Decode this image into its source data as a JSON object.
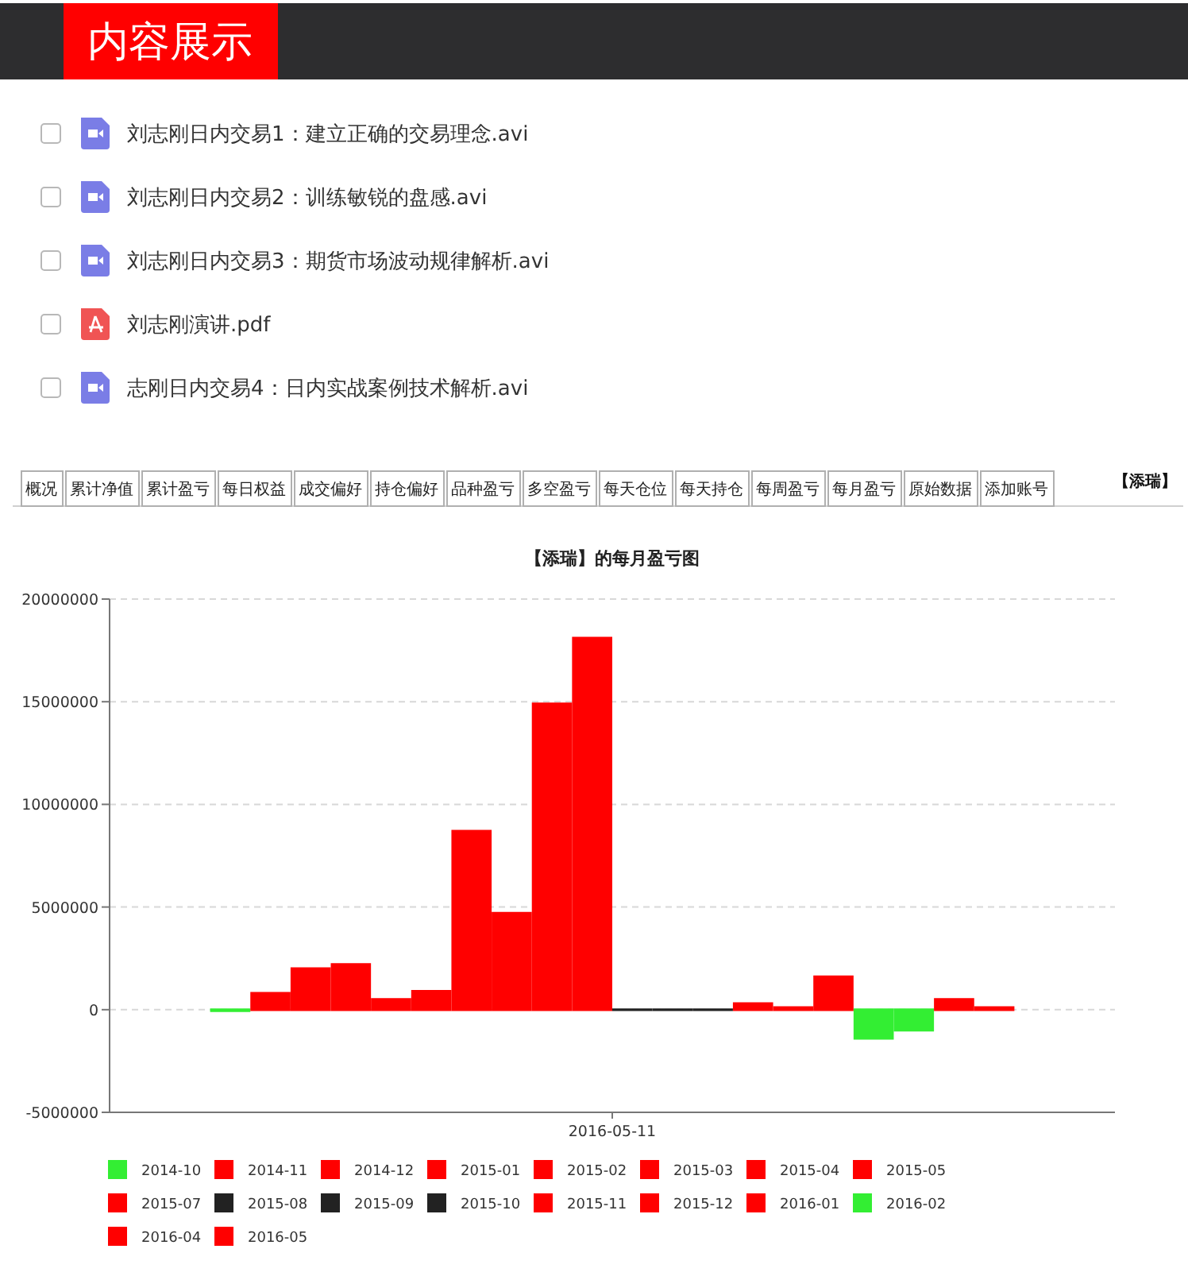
{
  "chart_data": [
    {
      "type": "other",
      "title": "内容展示",
      "annotations": [
        "刘志刚日内交易1：建立正确的交易理念.avi",
        "刘志刚日内交易2：训练敏锐的盘感.avi",
        "刘志刚日内交易3：期货市场波动规律解析.avi",
        "刘志刚演讲.pdf",
        "志刚日内交易4：日内实战案例技术解析.avi"
      ]
    },
    {
      "type": "other",
      "title": "【添瑞】",
      "annotations": [
        "概况",
        "累计净值",
        "累计盈亏",
        "每日权益",
        "成交偏好",
        "持仓偏好",
        "品种盈亏",
        "多空盈亏",
        "每天仓位",
        "每天持仓",
        "每周盈亏",
        "每月盈亏",
        "原始数据",
        "添加账号"
      ]
    },
    {
      "type": "bar",
      "title": "【添瑞】的每月盈亏图",
      "categories": [
        "2016-05-11"
      ],
      "series": [
        {
          "name": "2014-10",
          "color": "#33ee33",
          "values": [
            -50000
          ]
        },
        {
          "name": "2014-11",
          "color": "#ff0000",
          "values": [
            800000
          ]
        },
        {
          "name": "2014-12",
          "color": "#ff0000",
          "values": [
            2000000
          ]
        },
        {
          "name": "2015-01",
          "color": "#ff0000",
          "values": [
            2200000
          ]
        },
        {
          "name": "2015-02",
          "color": "#ff0000",
          "values": [
            500000
          ]
        },
        {
          "name": "2015-03",
          "color": "#ff0000",
          "values": [
            900000
          ]
        },
        {
          "name": "2015-04",
          "color": "#ff0000",
          "values": [
            8700000
          ]
        },
        {
          "name": "2015-05",
          "color": "#ff0000",
          "values": [
            4700000
          ]
        },
        {
          "color": "#ff0000",
          "values": [
            14900000
          ]
        },
        {
          "name": "2015-07",
          "color": "#ff0000",
          "values": [
            18100000
          ]
        },
        {
          "name": "2015-08",
          "color": "#222222",
          "values": [
            0
          ]
        },
        {
          "name": "2015-09",
          "color": "#222222",
          "values": [
            0
          ]
        },
        {
          "name": "2015-10",
          "color": "#222222",
          "values": [
            0
          ]
        },
        {
          "name": "2015-11",
          "color": "#ff0000",
          "values": [
            300000
          ]
        },
        {
          "name": "2015-12",
          "color": "#ff0000",
          "values": [
            100000
          ]
        },
        {
          "name": "2016-01",
          "color": "#ff0000",
          "values": [
            1600000
          ]
        },
        {
          "name": "2016-02",
          "color": "#33ee33",
          "values": [
            -1400000
          ]
        },
        {
          "color": "#33ee33",
          "values": [
            -1000000
          ]
        },
        {
          "name": "2016-04",
          "color": "#ff0000",
          "values": [
            500000
          ]
        },
        {
          "name": "2016-05",
          "color": "#ff0000",
          "values": [
            100000
          ]
        }
      ],
      "ylim": [
        -5000000,
        20000000
      ],
      "yticks": [
        -5000000,
        0,
        5000000,
        10000000,
        15000000,
        20000000
      ],
      "grid": "y",
      "legend": "bottom"
    }
  ]
}
